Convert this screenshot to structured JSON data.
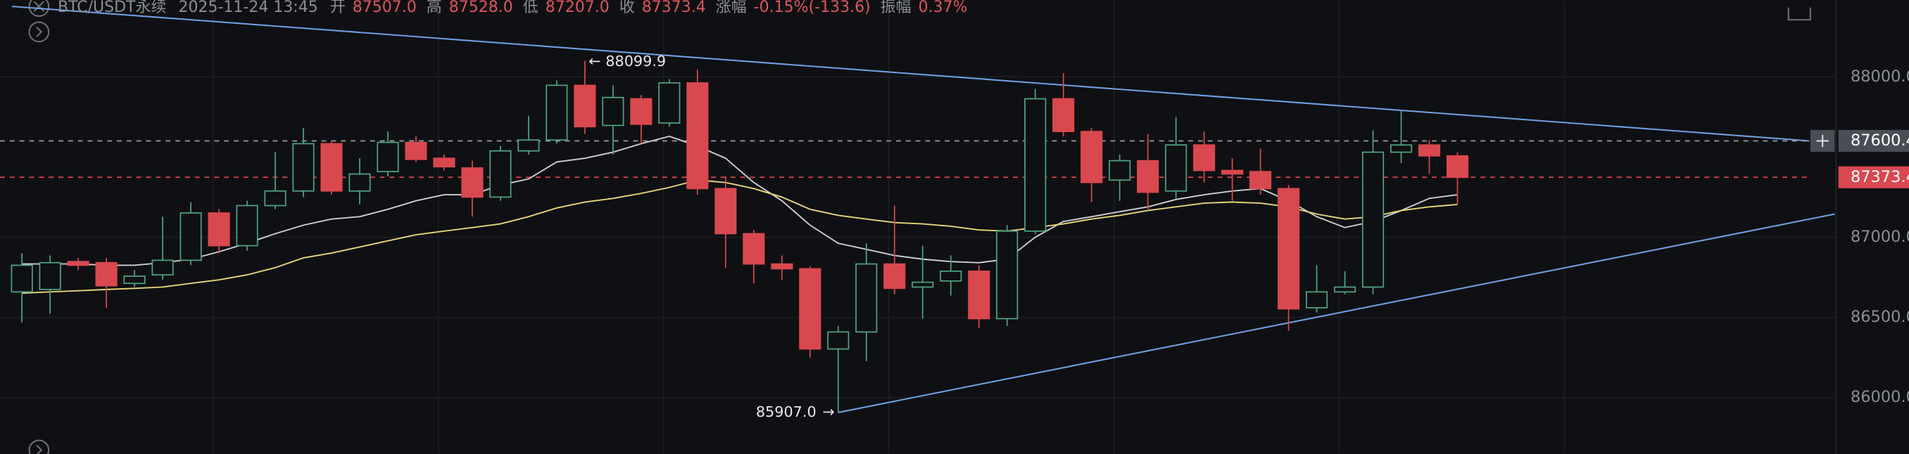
{
  "header": {
    "symbol": "BTC/USDT永续",
    "time": "2025-11-24 13:45",
    "fields": [
      {
        "label": "开",
        "value": "87507.0"
      },
      {
        "label": "高",
        "value": "87528.0"
      },
      {
        "label": "低",
        "value": "87207.0"
      },
      {
        "label": "收",
        "value": "87373.4"
      },
      {
        "label": "涨幅",
        "value": "-0.15%(-133.6)"
      },
      {
        "label": "振幅",
        "value": "0.37%"
      }
    ]
  },
  "chart_data": {
    "type": "candlestick",
    "open": [
      86659,
      86674,
      86848,
      86841,
      86712,
      86765,
      86856,
      87151,
      86947,
      87197,
      87288,
      87583,
      87288,
      87409,
      87591,
      87492,
      87432,
      87250,
      87538,
      87606,
      87947,
      87697,
      87863,
      87712,
      87962,
      87303,
      87022,
      86833,
      86803,
      86303,
      86409,
      86833,
      86689,
      86727,
      86788,
      86492,
      87038,
      87863,
      87659,
      87356,
      87477,
      87288,
      87575,
      87416,
      87409,
      87303,
      86560,
      86659,
      86689,
      87530,
      87575,
      87507
    ],
    "high": [
      86901,
      86886,
      86871,
      86871,
      86795,
      87128,
      87219,
      87174,
      87227,
      87530,
      87682,
      87606,
      87492,
      87659,
      87629,
      87515,
      87477,
      87568,
      87757,
      87977,
      88099.9,
      87947,
      87886,
      87985,
      88045,
      87379,
      87045,
      86886,
      86818,
      86447,
      86962,
      87197,
      86947,
      86886,
      86825,
      87075,
      87924,
      88022,
      87682,
      87515,
      87644,
      87750,
      87659,
      87492,
      87553,
      87325,
      86825,
      86788,
      87666,
      87795,
      87606,
      87528
    ],
    "low": [
      86469,
      86522,
      86795,
      86560,
      86689,
      86734,
      86825,
      86901,
      86916,
      87174,
      87250,
      87265,
      87204,
      87379,
      87469,
      87416,
      87128,
      87227,
      87515,
      87583,
      87644,
      87515,
      87583,
      87689,
      87265,
      86810,
      86712,
      86734,
      86250,
      85907.0,
      86227,
      86644,
      86492,
      86636,
      86432,
      86447,
      87022,
      87629,
      87219,
      87227,
      87174,
      87242,
      87341,
      87227,
      87265,
      86416,
      86530,
      86644,
      86644,
      87462,
      87394,
      87207
    ],
    "close": [
      86825,
      86841,
      86825,
      86697,
      86757,
      86856,
      87151,
      86947,
      87197,
      87288,
      87583,
      87288,
      87394,
      87591,
      87485,
      87439,
      87250,
      87538,
      87606,
      87947,
      87689,
      87871,
      87704,
      87962,
      87303,
      87022,
      86833,
      86803,
      86303,
      86409,
      86833,
      86681,
      86719,
      86788,
      86492,
      87038,
      87863,
      87659,
      87341,
      87477,
      87280,
      87575,
      87416,
      87394,
      87303,
      86553,
      86659,
      86689,
      87530,
      87575,
      87507,
      87373.4
    ],
    "up_color": "#4fa383",
    "down_color": "#d9484f",
    "series": [
      {
        "color": "#cfcfd2",
        "values": [
          86833,
          86833,
          86833,
          86825,
          86825,
          86841,
          86863,
          86909,
          86962,
          87022,
          87075,
          87113,
          87128,
          87174,
          87227,
          87265,
          87265,
          87325,
          87363,
          87469,
          87492,
          87530,
          87583,
          87629,
          87568,
          87492,
          87341,
          87227,
          87075,
          86962,
          86924,
          86886,
          86863,
          86848,
          86841,
          86863,
          87000,
          87098,
          87128,
          87159,
          87189,
          87235,
          87265,
          87288,
          87303,
          87227,
          87128,
          87060,
          87098,
          87166,
          87242,
          87265
        ]
      },
      {
        "color": "#e6d67a",
        "values": [
          86651,
          86659,
          86666,
          86674,
          86681,
          86689,
          86712,
          86734,
          86765,
          86810,
          86871,
          86901,
          86939,
          86977,
          87015,
          87038,
          87060,
          87083,
          87128,
          87182,
          87219,
          87242,
          87273,
          87310,
          87356,
          87341,
          87303,
          87250,
          87174,
          87136,
          87113,
          87091,
          87083,
          87068,
          87045,
          87038,
          87060,
          87083,
          87113,
          87136,
          87166,
          87189,
          87212,
          87219,
          87212,
          87189,
          87144,
          87113,
          87128,
          87166,
          87189,
          87204
        ]
      }
    ],
    "trendlines": [
      {
        "color": "#6f9fe0",
        "x": [
          -0.35,
          63.5
        ],
        "values": [
          88439,
          87600.4
        ]
      },
      {
        "color": "#6f9fe0",
        "x": [
          29,
          64.4
        ],
        "values": [
          85907.0,
          87144
        ]
      }
    ],
    "price_lines": [
      {
        "value": 87600.4,
        "label": "87600.4",
        "color": "#9a9ca3",
        "box": "#4a4d55"
      },
      {
        "value": 87373.4,
        "label": "87373.4",
        "color": "#d9484f",
        "box": "#d9484f"
      }
    ],
    "annotations": [
      {
        "value": 88099.9,
        "label": "88099.9"
      },
      {
        "value": 85907.0,
        "label": "85907.0"
      }
    ],
    "ylim": [
      85650,
      88477
    ],
    "yticks": [
      {
        "value": 88000,
        "label": "88000.0"
      },
      {
        "value": 87000,
        "label": "87000.0"
      },
      {
        "value": 86500,
        "label": "86500.0"
      },
      {
        "value": 86000,
        "label": "86000.0"
      }
    ],
    "grid": true
  }
}
